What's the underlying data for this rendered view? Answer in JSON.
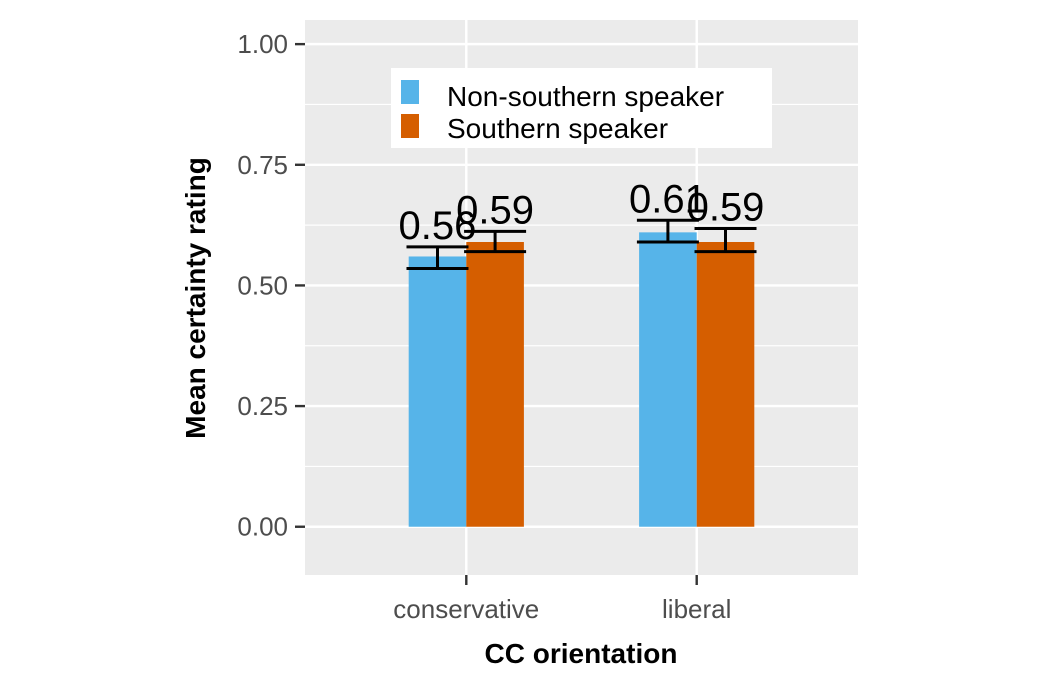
{
  "chart_data": {
    "type": "bar",
    "xlabel": "CC orientation",
    "ylabel": "Mean certainty rating",
    "categories": [
      "conservative",
      "liberal"
    ],
    "series": [
      {
        "name": "Non-southern speaker",
        "color": "#56B4E9",
        "values": [
          0.56,
          0.61
        ],
        "value_labels": [
          "0.56",
          "0.61"
        ],
        "error_low": [
          0.535,
          0.59
        ],
        "error_high": [
          0.58,
          0.635
        ]
      },
      {
        "name": "Southern speaker",
        "color": "#D55E00",
        "values": [
          0.59,
          0.59
        ],
        "value_labels": [
          "0.59",
          "0.59"
        ],
        "error_low": [
          0.57,
          0.57
        ],
        "error_high": [
          0.612,
          0.618
        ]
      }
    ],
    "ylim": [
      -0.1,
      1.05
    ],
    "yticks": [
      0,
      0.25,
      0.5,
      0.75,
      1.0
    ],
    "ytick_labels": [
      "0.00",
      "0.25",
      "0.50",
      "0.75",
      "1.00"
    ],
    "grid": true,
    "panel_background": "#EBEBEB",
    "legend_position": "top-center-inside"
  }
}
